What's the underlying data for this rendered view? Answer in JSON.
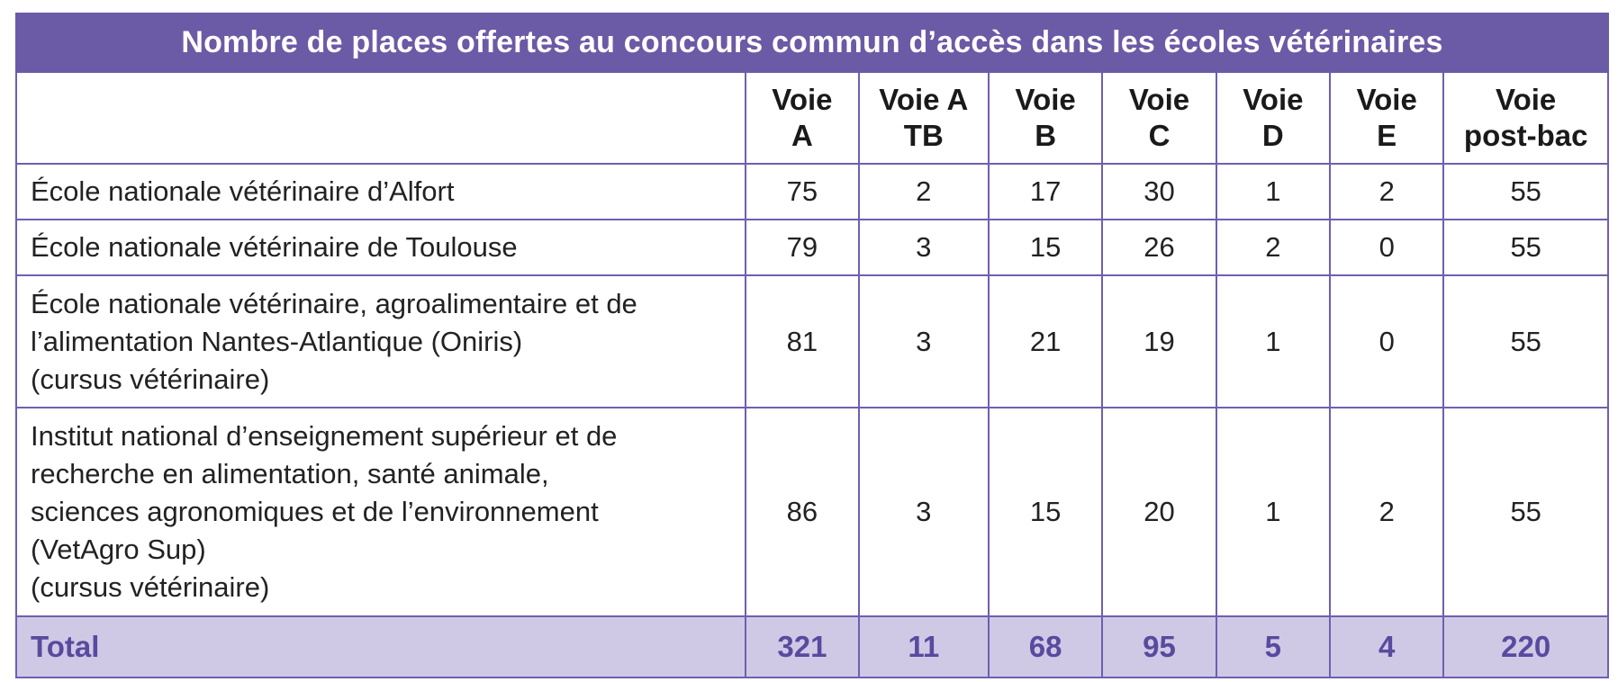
{
  "title": "Nombre de places offertes au concours commun d’accès dans les écoles vétérinaires",
  "headers": [
    [
      "Voie",
      "A"
    ],
    [
      "Voie A",
      "TB"
    ],
    [
      "Voie",
      "B"
    ],
    [
      "Voie",
      "C"
    ],
    [
      "Voie",
      "D"
    ],
    [
      "Voie",
      "E"
    ],
    [
      "Voie",
      "post-bac"
    ]
  ],
  "rows": [
    {
      "name_lines": [
        "École nationale vétérinaire d’Alfort"
      ],
      "values": [
        "75",
        "2",
        "17",
        "30",
        "1",
        "2",
        "55"
      ]
    },
    {
      "name_lines": [
        "École nationale vétérinaire de Toulouse"
      ],
      "values": [
        "79",
        "3",
        "15",
        "26",
        "2",
        "0",
        "55"
      ]
    },
    {
      "name_lines": [
        "École nationale vétérinaire, agroalimentaire et de",
        "l’alimentation Nantes-Atlantique (Oniris)",
        "(cursus vétérinaire)"
      ],
      "values": [
        "81",
        "3",
        "21",
        "19",
        "1",
        "0",
        "55"
      ]
    },
    {
      "name_lines": [
        "Institut national d’enseignement supérieur et de",
        "recherche en alimentation, santé animale,",
        "sciences agronomiques et de l’environnement",
        "(VetAgro Sup)",
        "(cursus vétérinaire)"
      ],
      "values": [
        "86",
        "3",
        "15",
        "20",
        "1",
        "2",
        "55"
      ]
    }
  ],
  "total": {
    "label": "Total",
    "values": [
      "321",
      "11",
      "68",
      "95",
      "5",
      "4",
      "220"
    ]
  },
  "colors": {
    "accent": "#6b5aa6",
    "total_background": "#cfc9e6",
    "total_text": "#5a4a9e"
  }
}
